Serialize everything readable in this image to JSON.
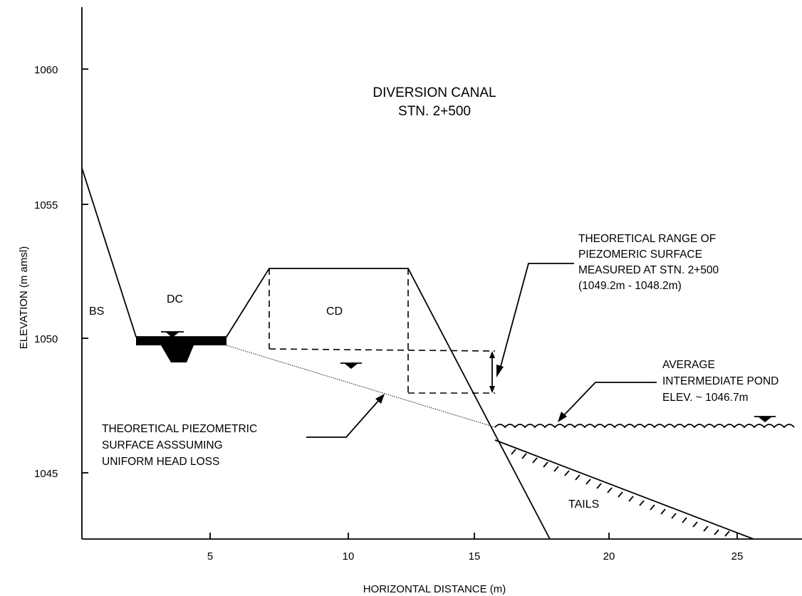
{
  "chart_data": {
    "type": "diagram",
    "title": [
      "DIVERSION CANAL",
      "STN. 2+500"
    ],
    "xlabel": "HORIZONTAL DISTANCE (m)",
    "ylabel": "ELEVATION (m amsl)",
    "x_ticks": [
      "5",
      "10",
      "15",
      "20",
      "25"
    ],
    "y_ticks": [
      "1060",
      "1055",
      "1050",
      "1045"
    ],
    "xlim": [
      0,
      27.5
    ],
    "ylim": [
      1042.5,
      1062.5
    ],
    "regions": {
      "bs": "BS",
      "dc": "DC",
      "cd": "CD",
      "tails": "TAILS"
    },
    "annotations": {
      "piezo_range": [
        "THEORETICAL RANGE OF",
        "PIEZOMERIC SURFACE",
        "MEASURED AT STN. 2+500",
        "(1049.2m - 1048.2m)"
      ],
      "pond": [
        "AVERAGE",
        "INTERMEDIATE POND",
        "ELEV. ~ 1046.7m"
      ],
      "theoretical": [
        "THEORETICAL PIEZOMETRIC",
        "SURFACE ASSSUMING",
        "UNIFORM HEAD LOSS"
      ]
    },
    "ground_profile": [
      [
        0,
        1056.3
      ],
      [
        2.1,
        1049.8
      ],
      [
        5.6,
        1049.8
      ],
      [
        7.2,
        1052.6
      ],
      [
        12.4,
        1052.6
      ],
      [
        17.7,
        1042.7
      ]
    ],
    "dam_right_toe": [
      [
        15.8,
        1046.2
      ],
      [
        25.1,
        1042.7
      ]
    ],
    "theoretical_piezometric_line": [
      [
        5.6,
        1049.8
      ],
      [
        15.8,
        1046.6
      ]
    ],
    "piezo_range_elevations": [
      1049.2,
      1048.2
    ],
    "pond_elevation": 1046.7
  }
}
